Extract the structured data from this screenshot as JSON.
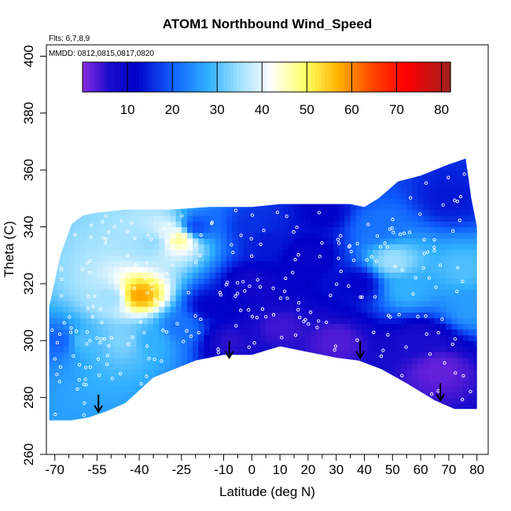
{
  "chart_data": {
    "type": "heatmap",
    "title": "ATOM1 Northbound Wind_Speed",
    "subtitle_lines": [
      "Flts: 6,7,8,9",
      "MMDD: 0812,0815,0817,0820"
    ],
    "xlabel": "Latitude (deg N)",
    "ylabel": "Theta (C)",
    "xlim": [
      -73,
      84
    ],
    "ylim": [
      260,
      404
    ],
    "x_tick_labels": [
      "-70",
      "-55",
      "-40",
      "-25",
      "-10",
      "0",
      "10",
      "20",
      "30",
      "40",
      "50",
      "60",
      "70",
      "80"
    ],
    "x_tick_values": [
      -70,
      -55,
      -40,
      -25,
      -10,
      0,
      10,
      20,
      30,
      40,
      50,
      60,
      70,
      80
    ],
    "x_minor_ticks": [
      -65,
      -60,
      -50,
      -45,
      -35,
      -30,
      -20,
      -15,
      -5,
      5,
      15,
      25,
      35,
      45,
      55,
      65,
      75
    ],
    "y_tick_labels": [
      "260",
      "280",
      "300",
      "320",
      "340",
      "360",
      "380",
      "400"
    ],
    "y_tick_values": [
      260,
      280,
      300,
      320,
      340,
      360,
      380,
      400
    ],
    "colorbar": {
      "min": 0,
      "max": 82,
      "tick_labels": [
        "10",
        "20",
        "30",
        "40",
        "50",
        "60",
        "70",
        "80"
      ],
      "tick_values": [
        10,
        20,
        30,
        40,
        50,
        60,
        70,
        80
      ],
      "color_stops": [
        {
          "value": 0,
          "color": "#8a2be2"
        },
        {
          "value": 6,
          "color": "#1a0ccc"
        },
        {
          "value": 12,
          "color": "#0000c8"
        },
        {
          "value": 20,
          "color": "#1060ff"
        },
        {
          "value": 28,
          "color": "#30b0ff"
        },
        {
          "value": 35,
          "color": "#a0e0ff"
        },
        {
          "value": 42,
          "color": "#ffffff"
        },
        {
          "value": 50,
          "color": "#ffff60"
        },
        {
          "value": 57,
          "color": "#ffb000"
        },
        {
          "value": 65,
          "color": "#ff4000"
        },
        {
          "value": 72,
          "color": "#ff0000"
        },
        {
          "value": 82,
          "color": "#a02020"
        }
      ]
    },
    "flight_arrows_latitude": [
      -54.5,
      -8,
      38.5,
      67
    ],
    "flight_arrow_theta_range": [
      [
        281,
        275
      ],
      [
        300,
        294
      ],
      [
        300,
        294
      ],
      [
        285,
        279
      ]
    ],
    "field_upper_boundary": [
      [
        -72,
        312
      ],
      [
        -68,
        330
      ],
      [
        -64,
        341
      ],
      [
        -60,
        344
      ],
      [
        -55,
        345
      ],
      [
        -45,
        346
      ],
      [
        -30,
        346
      ],
      [
        -15,
        347
      ],
      [
        0,
        347
      ],
      [
        10,
        348
      ],
      [
        25,
        348
      ],
      [
        35,
        348
      ],
      [
        40,
        347
      ],
      [
        45,
        350
      ],
      [
        52,
        356
      ],
      [
        60,
        358
      ],
      [
        70,
        362
      ],
      [
        76,
        364
      ],
      [
        78,
        350
      ],
      [
        80,
        340
      ],
      [
        80,
        276
      ]
    ],
    "field_lower_boundary": [
      [
        -72,
        272
      ],
      [
        -64,
        272
      ],
      [
        -58,
        273
      ],
      [
        -52,
        275
      ],
      [
        -45,
        278
      ],
      [
        -35,
        287
      ],
      [
        -20,
        293
      ],
      [
        -10,
        295
      ],
      [
        0,
        295
      ],
      [
        10,
        298
      ],
      [
        20,
        296
      ],
      [
        30,
        294
      ],
      [
        38,
        293
      ],
      [
        46,
        290
      ],
      [
        55,
        285
      ],
      [
        65,
        279
      ],
      [
        72,
        276
      ],
      [
        80,
        276
      ]
    ],
    "wind_speed_samples": [
      {
        "lat": -60,
        "theta": 300,
        "speed": 30
      },
      {
        "lat": -50,
        "theta": 315,
        "speed": 35
      },
      {
        "lat": -45,
        "theta": 300,
        "speed": 33
      },
      {
        "lat": -40,
        "theta": 316,
        "speed": 58
      },
      {
        "lat": -36,
        "theta": 300,
        "speed": 28
      },
      {
        "lat": -35,
        "theta": 335,
        "speed": 34
      },
      {
        "lat": -30,
        "theta": 338,
        "speed": 40
      },
      {
        "lat": -26,
        "theta": 336,
        "speed": 48
      },
      {
        "lat": -25,
        "theta": 305,
        "speed": 22
      },
      {
        "lat": -20,
        "theta": 340,
        "speed": 18
      },
      {
        "lat": -15,
        "theta": 312,
        "speed": 12
      },
      {
        "lat": -8,
        "theta": 300,
        "speed": 5
      },
      {
        "lat": 0,
        "theta": 320,
        "speed": 8
      },
      {
        "lat": 5,
        "theta": 335,
        "speed": 14
      },
      {
        "lat": 10,
        "theta": 305,
        "speed": 4
      },
      {
        "lat": 20,
        "theta": 330,
        "speed": 10
      },
      {
        "lat": 30,
        "theta": 300,
        "speed": 3
      },
      {
        "lat": 38,
        "theta": 320,
        "speed": 12
      },
      {
        "lat": 45,
        "theta": 340,
        "speed": 22
      },
      {
        "lat": 50,
        "theta": 328,
        "speed": 35
      },
      {
        "lat": 55,
        "theta": 318,
        "speed": 28
      },
      {
        "lat": 60,
        "theta": 300,
        "speed": 6
      },
      {
        "lat": 66,
        "theta": 290,
        "speed": 2
      },
      {
        "lat": 75,
        "theta": 325,
        "speed": 30
      },
      {
        "lat": 78,
        "theta": 312,
        "speed": 26
      },
      {
        "lat": -68,
        "theta": 300,
        "speed": 20
      },
      {
        "lat": 0,
        "theta": 340,
        "speed": 16
      },
      {
        "lat": 25,
        "theta": 345,
        "speed": 12
      },
      {
        "lat": 70,
        "theta": 350,
        "speed": 14
      }
    ]
  }
}
